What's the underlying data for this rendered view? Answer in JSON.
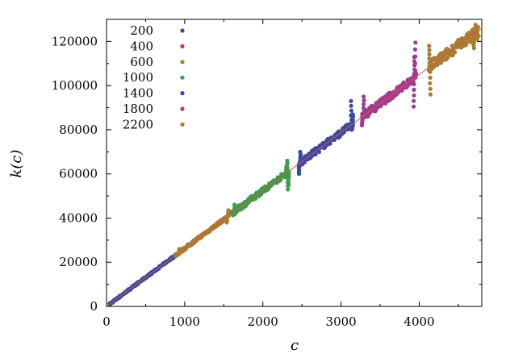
{
  "chart_data": {
    "type": "scatter",
    "title": "",
    "xlabel": "c",
    "ylabel": "k(c)",
    "xlim": [
      0,
      4800
    ],
    "ylim": [
      0,
      130000
    ],
    "xticks": [
      0,
      1000,
      2000,
      3000,
      4000
    ],
    "yticks": [
      0,
      20000,
      40000,
      60000,
      80000,
      100000,
      120000
    ],
    "xtick_labels": [
      "0",
      "1000",
      "2000",
      "3000",
      "4000"
    ],
    "ytick_labels": [
      "0",
      "20000",
      "40000",
      "60000",
      "80000",
      "100000",
      "120000"
    ],
    "grid": false,
    "legend_position": "top-left",
    "fit_line": {
      "x": [
        0,
        4800
      ],
      "y": [
        0,
        126000
      ],
      "color": "#d9534f"
    },
    "series": [
      {
        "name": "200",
        "color": "#3b4a9e",
        "x_range": [
          40,
          230
        ],
        "points": [
          [
            60,
            1500
          ],
          [
            100,
            2600
          ],
          [
            140,
            3700
          ],
          [
            180,
            4700
          ],
          [
            220,
            5800
          ]
        ]
      },
      {
        "name": "400",
        "color": "#a23b8f",
        "x_range": [
          80,
          460
        ],
        "points": [
          [
            100,
            2600
          ],
          [
            200,
            5200
          ],
          [
            300,
            7900
          ],
          [
            400,
            10500
          ],
          [
            450,
            11800
          ]
        ]
      },
      {
        "name": "600",
        "color": "#a87d32",
        "x_range": [
          120,
          660
        ],
        "points": [
          [
            150,
            4000
          ],
          [
            300,
            7900
          ],
          [
            450,
            11800
          ],
          [
            600,
            15700
          ],
          [
            650,
            17000
          ]
        ]
      },
      {
        "name": "1000",
        "color": "#3e9c4c",
        "x_range": [
          180,
          1000
        ],
        "points": [
          [
            200,
            5200
          ],
          [
            450,
            11800
          ],
          [
            700,
            18300
          ],
          [
            900,
            23600
          ],
          [
            950,
            26000
          ]
        ]
      },
      {
        "name": "1400",
        "color": "#3b4a9e",
        "x_range": [
          260,
          1500
        ],
        "points": [
          [
            300,
            7900
          ],
          [
            600,
            15700
          ],
          [
            900,
            23600
          ],
          [
            1200,
            31500
          ],
          [
            1450,
            38000
          ]
        ]
      },
      {
        "name": "1800",
        "color": "#a23b8f",
        "x_range": [
          300,
          1900
        ],
        "points": [
          [
            350,
            9200
          ],
          [
            700,
            18300
          ],
          [
            1100,
            28800
          ],
          [
            1500,
            39300
          ],
          [
            1850,
            48500
          ]
        ]
      },
      {
        "name": "2200",
        "color": "#a87d32",
        "x_range": [
          350,
          2350
        ],
        "points": [
          [
            400,
            10500
          ],
          [
            900,
            23600
          ],
          [
            1400,
            36700
          ],
          [
            1900,
            49800
          ],
          [
            2300,
            60300
          ]
        ]
      }
    ],
    "segments": [
      {
        "color": "#3b4a9e",
        "x0": 40,
        "x1": 880,
        "spread": 400,
        "spikes": []
      },
      {
        "color": "#a87d32",
        "x0": 880,
        "x1": 1560,
        "spread": 700,
        "spikes": [
          [
            930,
            26000
          ],
          [
            1540,
            38000
          ],
          [
            1560,
            43500
          ]
        ]
      },
      {
        "color": "#3e9c4c",
        "x0": 1600,
        "x1": 2330,
        "spread": 1300,
        "spikes": [
          [
            1640,
            46000
          ],
          [
            2310,
            66000
          ],
          [
            2300,
            63500
          ],
          [
            2330,
            55000
          ],
          [
            2320,
            53000
          ]
        ]
      },
      {
        "color": "#3b4a9e",
        "x0": 2460,
        "x1": 3150,
        "spread": 1500,
        "spikes": [
          [
            2480,
            70000
          ],
          [
            2460,
            60000
          ],
          [
            3130,
            93000
          ],
          [
            3150,
            87000
          ],
          [
            3140,
            80000
          ]
        ]
      },
      {
        "color": "#a23b8f",
        "x0": 3270,
        "x1": 3960,
        "spread": 1800,
        "spikes": [
          [
            3290,
            95000
          ],
          [
            3270,
            82000
          ],
          [
            3950,
            119500
          ],
          [
            3940,
            113000
          ],
          [
            3930,
            90500
          ]
        ]
      },
      {
        "color": "#a87d32",
        "x0": 4120,
        "x1": 4760,
        "spread": 2600,
        "spikes": [
          [
            4130,
            118000
          ],
          [
            4140,
            96000
          ],
          [
            4720,
            127500
          ],
          [
            4700,
            117000
          ],
          [
            4740,
            121000
          ]
        ]
      }
    ]
  }
}
